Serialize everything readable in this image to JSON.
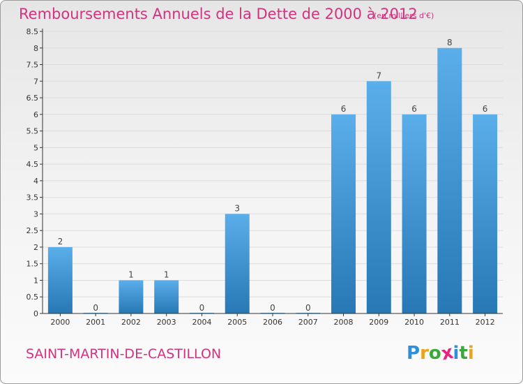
{
  "title": "Remboursements Annuels de la Dette de 2000 à 2012",
  "unit": "(en milliers d'€)",
  "commune": "SAINT-MARTIN-DE-CASTILLON",
  "logo": {
    "letters": [
      "P",
      "r",
      "o",
      "x",
      "i",
      "t",
      "i"
    ],
    "colors": [
      "#2f8fd8",
      "#f0a11a",
      "#3ba83a",
      "#e6237e",
      "#2f8fd8",
      "#3ba83a",
      "#f0a11a"
    ]
  },
  "colors": {
    "accent": "#d2337e",
    "bar_top": "#5aaeea",
    "bar_bottom": "#2778b5",
    "axis": "#333333",
    "grid": "#dcdcdc"
  },
  "chart_data": {
    "type": "bar",
    "categories": [
      "2000",
      "2001",
      "2002",
      "2003",
      "2004",
      "2005",
      "2006",
      "2007",
      "2008",
      "2009",
      "2010",
      "2011",
      "2012"
    ],
    "values": [
      2,
      0,
      1,
      1,
      0,
      3,
      0,
      0,
      6,
      7,
      6,
      8,
      6
    ],
    "data_labels": [
      "2",
      "0",
      "1",
      "1",
      "0",
      "3",
      "0",
      "0",
      "6",
      "7",
      "6",
      "8",
      "6"
    ],
    "y_ticks": [
      "0",
      "0.5",
      "1",
      "1.5",
      "2",
      "2.5",
      "3",
      "3.5",
      "4",
      "4.5",
      "5",
      "5.5",
      "6",
      "6.5",
      "7",
      "7.5",
      "8",
      "8.5"
    ],
    "ylim": [
      0,
      8.5
    ],
    "grid": true
  }
}
